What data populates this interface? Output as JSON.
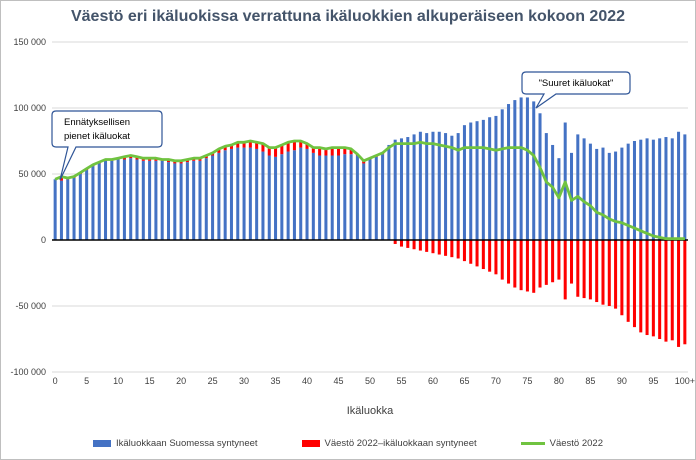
{
  "chart_data": {
    "type": "bar",
    "title": "Väestö eri ikäluokissa verrattuna ikäluokkien alkuperäiseen kokoon 2022",
    "xlabel": "Ikäluokka",
    "ylabel": "",
    "ylim": [
      -100000,
      150000
    ],
    "ytick_labels": [
      "150 000",
      "100 000",
      "50 000",
      "0",
      "-50 000",
      "-100 000"
    ],
    "ytick_values": [
      150000,
      100000,
      50000,
      0,
      -50000,
      -100000
    ],
    "xtick_labels": [
      "0",
      "5",
      "10",
      "15",
      "20",
      "25",
      "30",
      "35",
      "40",
      "45",
      "50",
      "55",
      "60",
      "65",
      "70",
      "75",
      "80",
      "85",
      "90",
      "95",
      "100+"
    ],
    "categories": [
      "0",
      "1",
      "2",
      "3",
      "4",
      "5",
      "6",
      "7",
      "8",
      "9",
      "10",
      "11",
      "12",
      "13",
      "14",
      "15",
      "16",
      "17",
      "18",
      "19",
      "20",
      "21",
      "22",
      "23",
      "24",
      "25",
      "26",
      "27",
      "28",
      "29",
      "30",
      "31",
      "32",
      "33",
      "34",
      "35",
      "36",
      "37",
      "38",
      "39",
      "40",
      "41",
      "42",
      "43",
      "44",
      "45",
      "46",
      "47",
      "48",
      "49",
      "50",
      "51",
      "52",
      "53",
      "54",
      "55",
      "56",
      "57",
      "58",
      "59",
      "60",
      "61",
      "62",
      "63",
      "64",
      "65",
      "66",
      "67",
      "68",
      "69",
      "70",
      "71",
      "72",
      "73",
      "74",
      "75",
      "76",
      "77",
      "78",
      "79",
      "80",
      "81",
      "82",
      "83",
      "84",
      "85",
      "86",
      "87",
      "88",
      "89",
      "90",
      "91",
      "92",
      "93",
      "94",
      "95",
      "96",
      "97",
      "98",
      "99",
      "100+"
    ],
    "series": [
      {
        "name": "Ikäluokkaan Suomessa syntyneet",
        "color": "#4472c4",
        "values": [
          46000,
          45000,
          46000,
          47000,
          50000,
          53000,
          56000,
          58000,
          60000,
          60000,
          61000,
          61000,
          62000,
          61000,
          60000,
          60000,
          60000,
          60000,
          59000,
          58000,
          58000,
          59000,
          60000,
          60000,
          62000,
          64000,
          66000,
          68000,
          69000,
          70000,
          70000,
          70000,
          69000,
          67000,
          64000,
          63000,
          65000,
          67000,
          68000,
          70000,
          69000,
          66000,
          64000,
          64000,
          64000,
          64000,
          65000,
          65000,
          64000,
          58000,
          61000,
          63000,
          65000,
          72000,
          76000,
          77000,
          78000,
          80000,
          82000,
          81000,
          82000,
          82000,
          81000,
          79000,
          81000,
          87000,
          89000,
          90000,
          91000,
          93000,
          94000,
          99000,
          103000,
          106000,
          108000,
          108000,
          105000,
          96000,
          81000,
          72000,
          62000,
          89000,
          66000,
          80000,
          77000,
          73000,
          69000,
          70000,
          66000,
          67000,
          70000,
          73000,
          75000,
          76000,
          77000,
          76000,
          77000,
          78000,
          77000,
          82000,
          80000
        ]
      },
      {
        "name": "Väestö 2022–ikäluokkaan syntyneet",
        "color": "#ff0000",
        "values": [
          0,
          0,
          0,
          0,
          0,
          0,
          0,
          0,
          0,
          0,
          0,
          0,
          0,
          0,
          0,
          0,
          0,
          0,
          0,
          0,
          0,
          0,
          0,
          0,
          0,
          0,
          0,
          0,
          0,
          0,
          0,
          0,
          0,
          0,
          0,
          0,
          0,
          0,
          0,
          0,
          0,
          0,
          0,
          0,
          0,
          0,
          0,
          0,
          0,
          0,
          0,
          0,
          0,
          0,
          -3000,
          -5000,
          -6000,
          -7000,
          -8000,
          -9000,
          -10000,
          -11000,
          -12000,
          -13000,
          -14000,
          -16000,
          -18000,
          -20000,
          -22000,
          -24000,
          -26000,
          -30000,
          -33000,
          -36000,
          -38000,
          -39000,
          -40000,
          -36000,
          -34000,
          -32000,
          -30000,
          -45000,
          -33000,
          -43000,
          -44000,
          -45000,
          -47000,
          -49000,
          -50000,
          -52000,
          -57000,
          -62000,
          -66000,
          -70000,
          -72000,
          -73000,
          -75000,
          -77000,
          -76000,
          -81000,
          -79000
        ]
      },
      {
        "name": "Väestö 2022",
        "color": "#70c340",
        "type": "line",
        "values": [
          46000,
          48000,
          47000,
          48000,
          51000,
          54000,
          57000,
          59000,
          61000,
          61000,
          62000,
          63000,
          64000,
          63000,
          62000,
          62000,
          62000,
          61000,
          61000,
          60000,
          60000,
          61000,
          62000,
          62000,
          64000,
          66000,
          69000,
          71000,
          72000,
          74000,
          74000,
          75000,
          74000,
          73000,
          70000,
          70000,
          72000,
          74000,
          75000,
          75000,
          73000,
          70000,
          70000,
          69000,
          70000,
          70000,
          70000,
          69000,
          65000,
          60000,
          62000,
          64000,
          66000,
          70000,
          73000,
          73000,
          73000,
          73000,
          74000,
          73000,
          73000,
          72000,
          71000,
          70000,
          68000,
          70000,
          70000,
          70000,
          70000,
          69000,
          68000,
          69000,
          70000,
          70000,
          70000,
          68000,
          64000,
          55000,
          44000,
          40000,
          32000,
          44000,
          30000,
          33000,
          29000,
          26000,
          21000,
          19000,
          16000,
          14000,
          13000,
          11000,
          9000,
          7000,
          5000,
          3000,
          2000,
          1000,
          1000,
          1000,
          1000
        ]
      }
    ],
    "annotations": [
      {
        "lines": [
          "Ennätyksellisen",
          "pienet ikäluokat"
        ]
      },
      {
        "lines": [
          "\"Suuret ikäluokat\""
        ]
      }
    ],
    "grid": true,
    "legend": "bottom"
  },
  "legend": [
    {
      "label": "Ikäluokkaan Suomessa syntyneet",
      "color": "#4472c4",
      "kind": "box"
    },
    {
      "label": "Väestö 2022–ikäluokkaan  syntyneet",
      "color": "#ff0000",
      "kind": "box"
    },
    {
      "label": "Väestö 2022",
      "color": "#70c340",
      "kind": "line"
    }
  ]
}
